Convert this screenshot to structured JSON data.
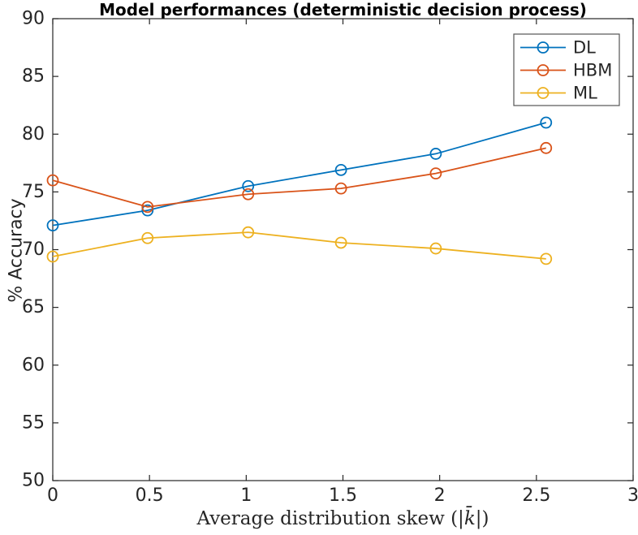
{
  "chart_data": {
    "type": "line",
    "title": "Model performances (deterministic decision process)",
    "ylabel": "% Accuracy",
    "xlabel": {
      "prefix": "Average distribution skew (|",
      "var": "k̄",
      "suffix": "|)"
    },
    "xlim": [
      0,
      3
    ],
    "ylim": [
      50,
      90
    ],
    "xticks": [
      0,
      0.5,
      1,
      1.5,
      2,
      2.5,
      3
    ],
    "xtick_labels": [
      "0",
      "0.5",
      "1",
      "1.5",
      "2",
      "2.5",
      "3"
    ],
    "yticks": [
      50,
      55,
      60,
      65,
      70,
      75,
      80,
      85,
      90
    ],
    "ytick_labels": [
      "50",
      "55",
      "60",
      "65",
      "70",
      "75",
      "80",
      "85",
      "90"
    ],
    "x": [
      0,
      0.49,
      1.01,
      1.49,
      1.98,
      2.55
    ],
    "series": [
      {
        "name": "DL",
        "color": "#0072BD",
        "values": [
          72.1,
          73.4,
          75.5,
          76.9,
          78.3,
          81.0
        ]
      },
      {
        "name": "HBM",
        "color": "#D95319",
        "values": [
          76.0,
          73.7,
          74.8,
          75.3,
          76.6,
          78.8
        ]
      },
      {
        "name": "ML",
        "color": "#EDB120",
        "values": [
          69.4,
          71.0,
          71.5,
          70.6,
          70.1,
          69.2
        ]
      }
    ],
    "legend": {
      "position": "top-right",
      "entries": [
        "DL",
        "HBM",
        "ML"
      ]
    },
    "marker": "circle",
    "grid": false,
    "axis_color": "#262626",
    "legend_border_color": "#555555",
    "tick_label_color": "#262626"
  }
}
